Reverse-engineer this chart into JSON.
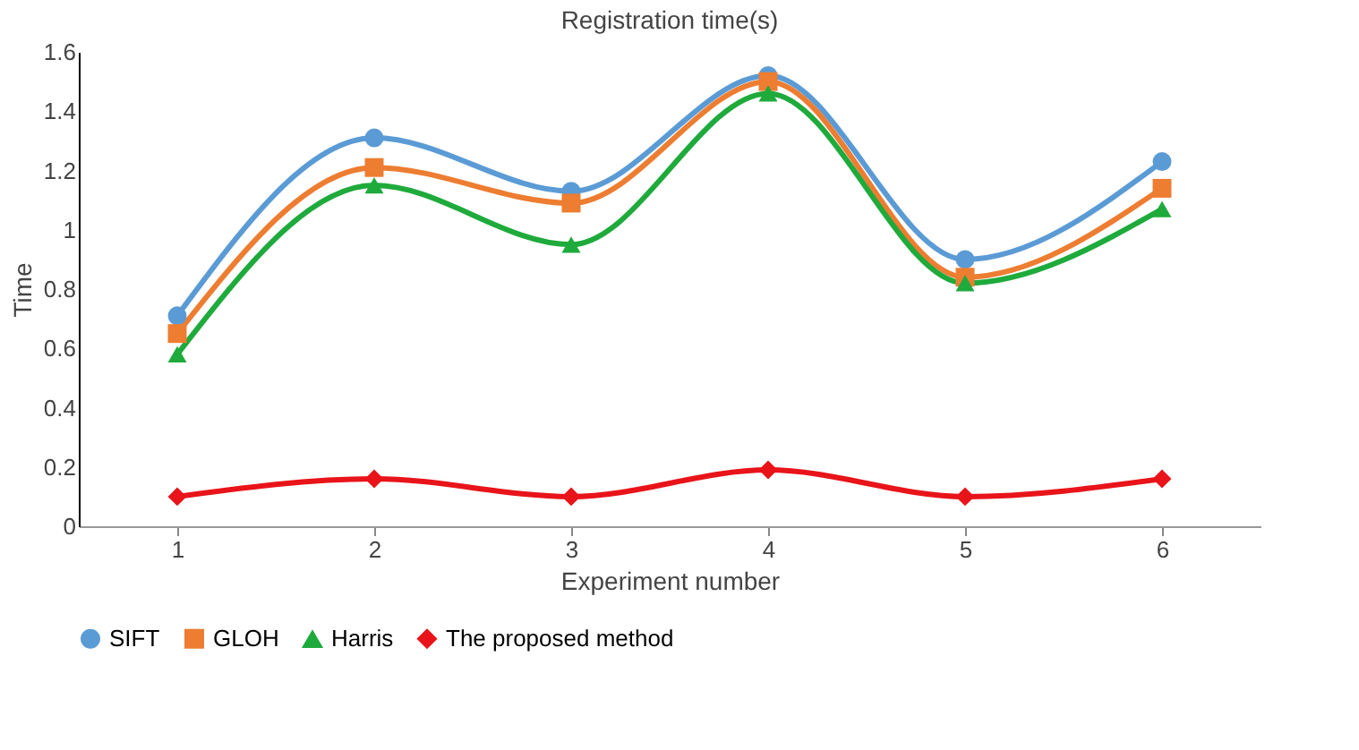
{
  "chart_data": {
    "type": "line",
    "title": "Registration time(s)",
    "xlabel": "Experiment number",
    "ylabel": "Time",
    "categories": [
      "1",
      "2",
      "3",
      "4",
      "5",
      "6"
    ],
    "series": [
      {
        "name": "SIFT",
        "color": "#5b9bd5",
        "marker": "circle",
        "values": [
          0.71,
          1.31,
          1.13,
          1.52,
          0.9,
          1.23
        ]
      },
      {
        "name": "GLOH",
        "color": "#ed7d31",
        "marker": "square",
        "values": [
          0.65,
          1.21,
          1.09,
          1.5,
          0.84,
          1.14
        ]
      },
      {
        "name": "Harris",
        "color": "#1faa3c",
        "marker": "triangle",
        "values": [
          0.58,
          1.15,
          0.95,
          1.46,
          0.82,
          1.07
        ]
      },
      {
        "name": "The proposed method",
        "color": "#e8141a",
        "marker": "diamond",
        "values": [
          0.1,
          0.16,
          0.1,
          0.19,
          0.1,
          0.16
        ]
      }
    ],
    "ylim": [
      0,
      1.6
    ],
    "yticks": [
      0,
      0.2,
      0.4,
      0.6,
      0.8,
      1,
      1.2,
      1.4,
      1.6
    ],
    "grid": false,
    "legend": "bottom"
  }
}
